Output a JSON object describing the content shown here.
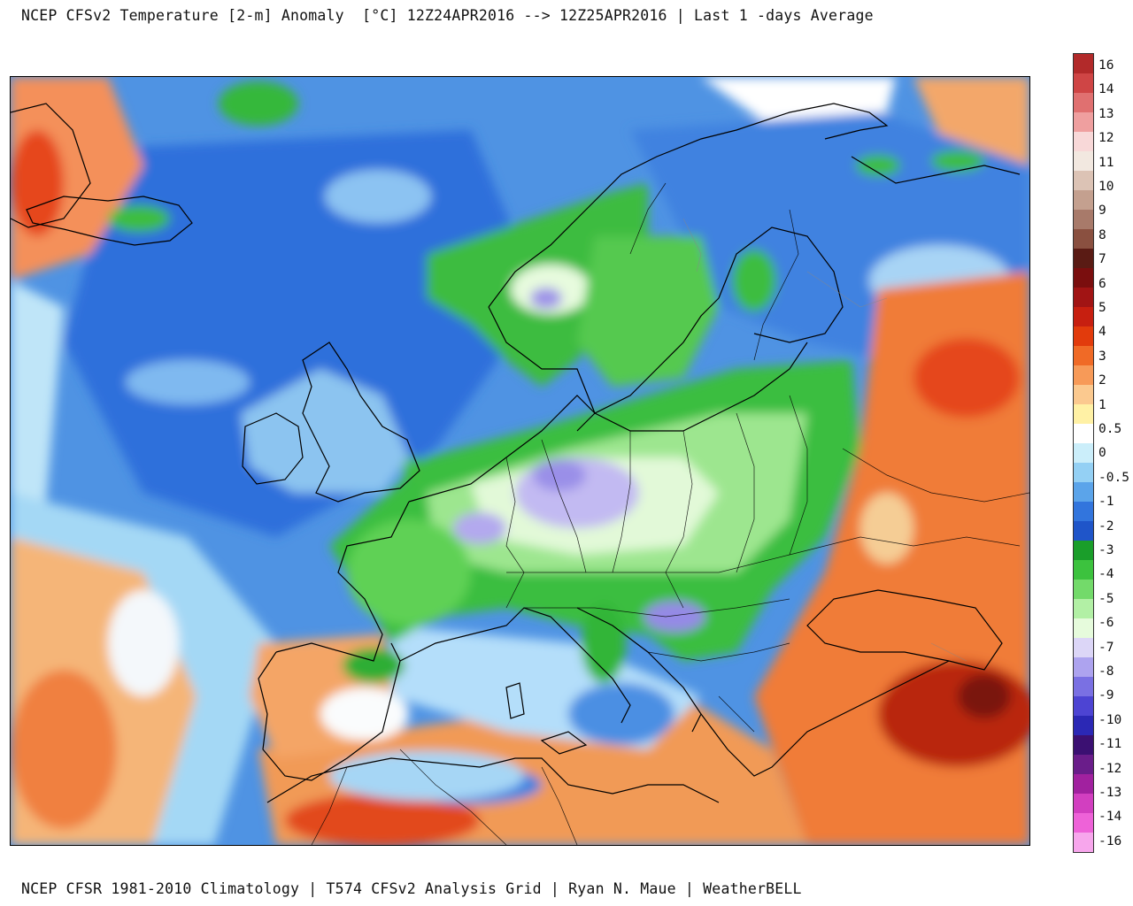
{
  "header": {
    "title": "NCEP CFSv2 Temperature [2-m] Anomaly  [°C] 12Z24APR2016 --> 12Z25APR2016 | Last 1 -days Average"
  },
  "footer": {
    "credit": "NCEP CFSR 1981-2010 Climatology | T574 CFSv2 Analysis Grid | Ryan N. Maue | WeatherBELL"
  },
  "map": {
    "region": "Europe and North Atlantic",
    "variable": "2-m temperature anomaly"
  },
  "legend": {
    "unit": "°C",
    "labels": [
      "16",
      "14",
      "13",
      "12",
      "11",
      "10",
      "9",
      "8",
      "7",
      "6",
      "5",
      "4",
      "3",
      "2",
      "1",
      "0.5",
      "0",
      "-0.5",
      "-1",
      "-2",
      "-3",
      "-4",
      "-5",
      "-6",
      "-7",
      "-8",
      "-9",
      "-10",
      "-11",
      "-12",
      "-13",
      "-14",
      "-16"
    ],
    "colors": [
      "#b22a2a",
      "#cf4545",
      "#e07070",
      "#ef9f9f",
      "#f8d8d8",
      "#f2e8e0",
      "#dcc3b5",
      "#c4a08f",
      "#a87a6a",
      "#8a5040",
      "#5a1b14",
      "#7a0e0e",
      "#a11414",
      "#c71f10",
      "#e23b0c",
      "#f06a26",
      "#f79a58",
      "#fbc98f",
      "#fff1a5",
      "#ffffff",
      "#cbeefa",
      "#94d0f4",
      "#5ba4ea",
      "#3275dd",
      "#1f55c9",
      "#1a9e2a",
      "#3cc23e",
      "#73da6a",
      "#b2f0a5",
      "#e6fbdc",
      "#dcd6f7",
      "#ada3ef",
      "#7a70e3",
      "#4d44d3",
      "#2b28b5",
      "#3b1072",
      "#6a1d8a",
      "#a1219f",
      "#d23fc0",
      "#ee62d8",
      "#f7a6ec"
    ]
  }
}
